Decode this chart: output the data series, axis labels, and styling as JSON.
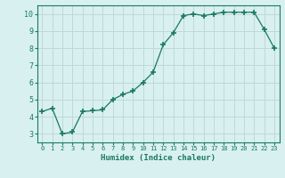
{
  "x": [
    0,
    1,
    2,
    3,
    4,
    5,
    6,
    7,
    8,
    9,
    10,
    11,
    12,
    13,
    14,
    15,
    16,
    17,
    18,
    19,
    20,
    21,
    22,
    23
  ],
  "y": [
    4.3,
    4.5,
    3.0,
    3.1,
    4.3,
    4.35,
    4.4,
    5.0,
    5.3,
    5.5,
    6.0,
    6.6,
    8.2,
    8.9,
    9.9,
    10.0,
    9.9,
    10.0,
    10.1,
    10.1,
    10.1,
    10.1,
    9.1,
    8.0
  ],
  "xlabel": "Humidex (Indice chaleur)",
  "line_color": "#1a7a5e",
  "bg_color": "#d8f0f0",
  "grid_color": "#c0d8d8",
  "xlim": [
    -0.5,
    23.5
  ],
  "ylim": [
    2.5,
    10.5
  ],
  "xticks": [
    0,
    1,
    2,
    3,
    4,
    5,
    6,
    7,
    8,
    9,
    10,
    11,
    12,
    13,
    14,
    15,
    16,
    17,
    18,
    19,
    20,
    21,
    22,
    23
  ],
  "yticks": [
    3,
    4,
    5,
    6,
    7,
    8,
    9,
    10
  ]
}
